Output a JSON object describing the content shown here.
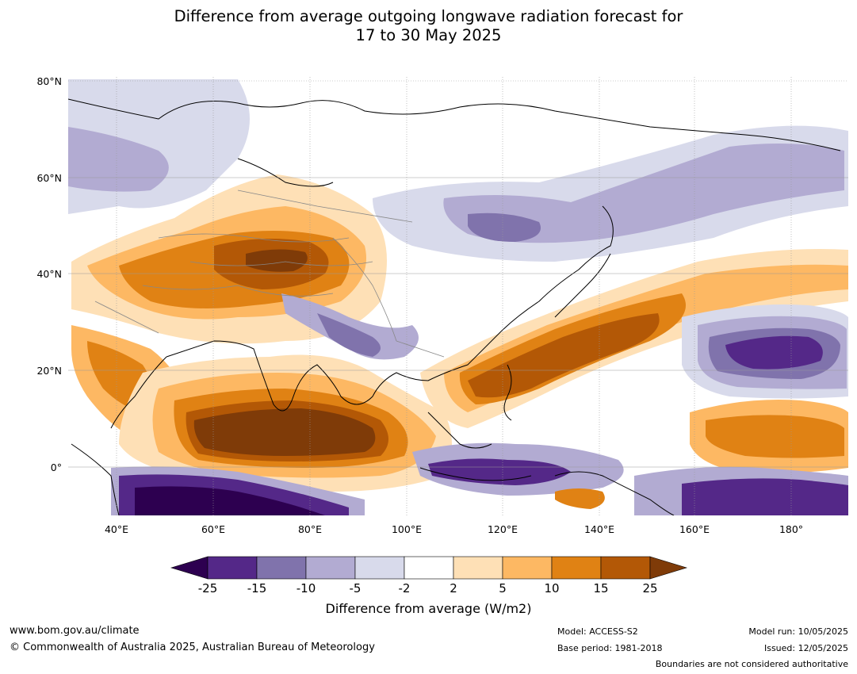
{
  "title_line1": "Difference from average outgoing longwave radiation forecast for",
  "title_line2": "17 to 30 May 2025",
  "map": {
    "lat_labels": [
      "80°N",
      "60°N",
      "40°N",
      "20°N",
      "0°"
    ],
    "lon_labels": [
      "40°E",
      "60°E",
      "80°E",
      "100°E",
      "120°E",
      "140°E",
      "160°E",
      "180°"
    ],
    "lon_range": [
      30,
      192
    ],
    "lat_range": [
      -10,
      81
    ]
  },
  "colorbar": {
    "ticks": [
      "-25",
      "-15",
      "-10",
      "-5",
      "-2",
      "2",
      "5",
      "10",
      "15",
      "25"
    ],
    "colors": {
      "lt_minus25": "#2d0050",
      "m25_m15": "#542888",
      "m15_m10": "#8073ac",
      "m10_m5": "#b2abd2",
      "m5_m2": "#d8daeb",
      "m2_2": "#ffffff",
      "p2_p5": "#fee0b6",
      "p5_p10": "#fdb863",
      "p10_p15": "#e08214",
      "p15_p25": "#b35806",
      "gt_25": "#7f3b08"
    },
    "label": "Difference from average (W/m2)"
  },
  "footer": {
    "website": "www.bom.gov.au/climate",
    "copyright": "© Commonwealth of Australia 2025, Australian Bureau of Meteorology",
    "model": "Model: ACCESS-S2",
    "base_period": "Base period: 1981-2018",
    "model_run": "Model run: 10/05/2025",
    "issued": "Issued: 12/05/2025",
    "boundaries": "Boundaries are not considered authoritative"
  }
}
